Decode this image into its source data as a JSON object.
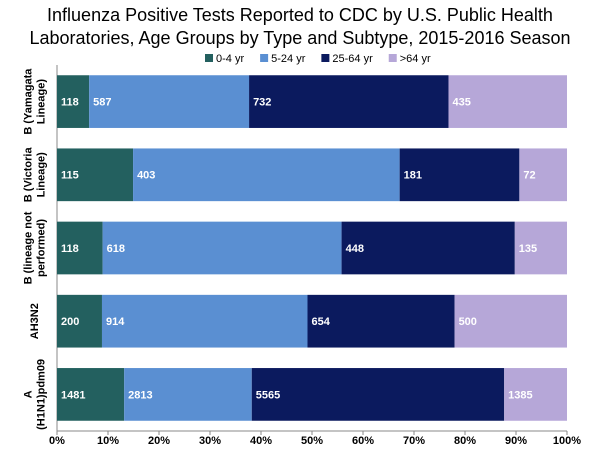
{
  "chart_data": {
    "type": "bar",
    "orientation": "horizontal",
    "stacking": "percent",
    "title": "Influenza Positive Tests Reported to CDC by U.S. Public Health Laboratories, Age Groups by Type and Subtype, 2015-2016 Season",
    "categories": [
      "B (Yamagata\nLineage)",
      "B (Victoria\nLineage)",
      "B (lineage not\nperformed)",
      "AH3N2",
      "A\n(H1N1)pdm09"
    ],
    "series": [
      {
        "name": "0-4 yr",
        "color": "#23605f",
        "values": [
          118,
          115,
          118,
          200,
          1481
        ]
      },
      {
        "name": "5-24 yr",
        "color": "#5a8fd2",
        "values": [
          587,
          403,
          618,
          914,
          2813
        ]
      },
      {
        "name": "25-64 yr",
        "color": "#0b1a5e",
        "values": [
          732,
          181,
          448,
          654,
          5565
        ]
      },
      {
        "name": ">64 yr",
        "color": "#b6a7d8",
        "values": [
          435,
          72,
          135,
          500,
          1385
        ]
      }
    ],
    "xlim": [
      0,
      100
    ],
    "xticks": [
      {
        "value": 0,
        "label": "0%"
      },
      {
        "value": 10,
        "label": "10%"
      },
      {
        "value": 20,
        "label": "20%"
      },
      {
        "value": 30,
        "label": "30%"
      },
      {
        "value": 40,
        "label": "40%"
      },
      {
        "value": 50,
        "label": "50%"
      },
      {
        "value": 60,
        "label": "60%"
      },
      {
        "value": 70,
        "label": "70%"
      },
      {
        "value": 80,
        "label": "80%"
      },
      {
        "value": 90,
        "label": "90%"
      },
      {
        "value": 100,
        "label": "100%"
      }
    ],
    "legend": "top"
  }
}
